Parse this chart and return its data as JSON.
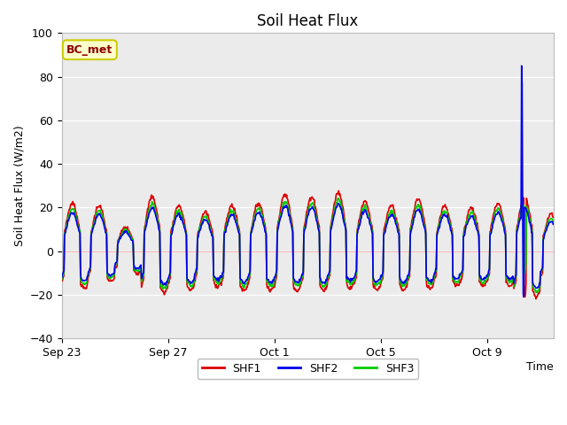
{
  "title": "Soil Heat Flux",
  "xlabel": "Time",
  "ylabel": "Soil Heat Flux (W/m2)",
  "ylim": [
    -40,
    100
  ],
  "yticks": [
    -40,
    -20,
    0,
    20,
    40,
    60,
    80,
    100
  ],
  "plot_bg_color": "#ebebeb",
  "fig_bg_color": "#ffffff",
  "legend_label": "BC_met",
  "legend_bg": "#ffffcc",
  "legend_border": "#cccc00",
  "shf1_color": "#dd0000",
  "shf2_color": "#0000ee",
  "shf3_color": "#00cc00",
  "line_width": 1.2,
  "xtick_labels": [
    "Sep 23",
    "Sep 27",
    "Oct 1",
    "Oct 5",
    "Oct 9"
  ],
  "xtick_positions": [
    0,
    4,
    8,
    12,
    16
  ],
  "xlim": [
    0,
    18.5
  ],
  "spike_day": 17.3,
  "spike_value": 85
}
